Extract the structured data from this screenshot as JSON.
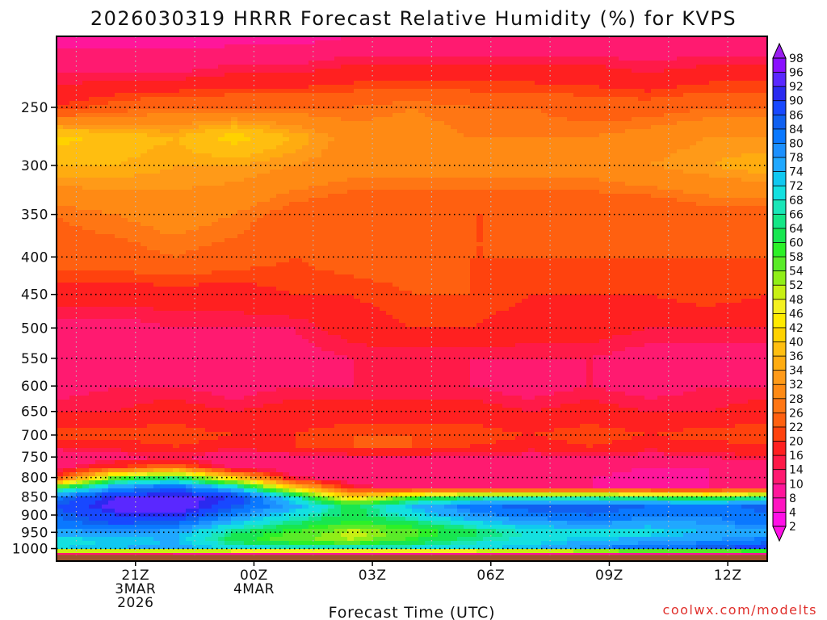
{
  "chart_data": {
    "type": "heatmap",
    "title": "2026030319 HRRR Forecast Relative Humidity (%) for KVPS",
    "xlabel": "Forecast Time (UTC)",
    "ylabel": "",
    "credit": "coolwx.com/modelts",
    "x_ticks": [
      {
        "lines": [
          "21Z",
          "3MAR",
          "2026"
        ],
        "hour": 2
      },
      {
        "lines": [
          "00Z",
          "4MAR"
        ],
        "hour": 5
      },
      {
        "lines": [
          "03Z"
        ],
        "hour": 8
      },
      {
        "lines": [
          "06Z"
        ],
        "hour": 11
      },
      {
        "lines": [
          "09Z"
        ],
        "hour": 14
      },
      {
        "lines": [
          "12Z"
        ],
        "hour": 17
      }
    ],
    "x_range_hours": [
      0,
      18
    ],
    "y_scale": "log-pressure",
    "y_range_hPa": [
      1040,
      200
    ],
    "y_ticks": [
      250,
      300,
      350,
      400,
      450,
      500,
      550,
      600,
      650,
      700,
      750,
      800,
      850,
      900,
      950,
      1000
    ],
    "surface_pressure_hPa": 1020,
    "colorbar": {
      "labels": [
        98,
        96,
        92,
        90,
        86,
        84,
        80,
        78,
        74,
        72,
        68,
        66,
        64,
        60,
        58,
        54,
        52,
        48,
        46,
        42,
        40,
        36,
        34,
        32,
        28,
        26,
        22,
        20,
        16,
        14,
        10,
        8,
        4,
        2
      ],
      "colors": [
        "#9a1ef0",
        "#8a10ff",
        "#5a28ff",
        "#2a2af0",
        "#1848ff",
        "#1060f0",
        "#0a78ff",
        "#1c90ff",
        "#20a8ff",
        "#10c8f0",
        "#14e0e0",
        "#1ae6b8",
        "#14e686",
        "#18e650",
        "#2cf028",
        "#5aeb28",
        "#90ee18",
        "#c8f014",
        "#f4f020",
        "#ffea00",
        "#ffd200",
        "#ffbe10",
        "#ffac10",
        "#ff9a18",
        "#ff8a14",
        "#ff7614",
        "#ff6010",
        "#ff420e",
        "#ff2020",
        "#ff1a48",
        "#ff1a70",
        "#ff169a",
        "#ff14c0",
        "#ff10e6"
      ]
    },
    "grid_hours": [
      0,
      1.5,
      3,
      4.5,
      6,
      7.5,
      9,
      10.5,
      12,
      13.5,
      15,
      16.5,
      18
    ],
    "grid_levels_hPa": [
      1020,
      1000,
      975,
      950,
      925,
      900,
      875,
      850,
      825,
      800,
      775,
      750,
      725,
      700,
      650,
      600,
      550,
      500,
      450,
      400,
      350,
      300,
      275,
      250,
      225,
      200
    ],
    "rh_values": [
      [
        12,
        10,
        10,
        8,
        8,
        8,
        8,
        8,
        8,
        8,
        8,
        8,
        8
      ],
      [
        72,
        74,
        76,
        72,
        70,
        70,
        70,
        72,
        74,
        80,
        84,
        86,
        90
      ],
      [
        70,
        72,
        74,
        62,
        55,
        52,
        60,
        66,
        70,
        74,
        76,
        78,
        82
      ],
      [
        76,
        78,
        76,
        64,
        58,
        50,
        56,
        62,
        68,
        70,
        70,
        74,
        76
      ],
      [
        82,
        86,
        84,
        72,
        64,
        58,
        62,
        70,
        76,
        78,
        76,
        78,
        82
      ],
      [
        84,
        90,
        92,
        80,
        70,
        62,
        70,
        78,
        82,
        84,
        82,
        80,
        84
      ],
      [
        86,
        94,
        96,
        86,
        76,
        62,
        74,
        82,
        86,
        86,
        84,
        82,
        86
      ],
      [
        82,
        92,
        94,
        90,
        70,
        40,
        56,
        62,
        64,
        62,
        60,
        58,
        62
      ],
      [
        58,
        78,
        84,
        72,
        40,
        16,
        12,
        12,
        10,
        10,
        10,
        10,
        12
      ],
      [
        20,
        56,
        64,
        40,
        14,
        10,
        10,
        12,
        10,
        10,
        8,
        10,
        10
      ],
      [
        12,
        20,
        26,
        12,
        10,
        10,
        12,
        12,
        10,
        12,
        10,
        10,
        12
      ],
      [
        10,
        12,
        14,
        10,
        12,
        14,
        14,
        14,
        12,
        14,
        12,
        14,
        16
      ],
      [
        16,
        18,
        20,
        18,
        20,
        22,
        22,
        20,
        18,
        20,
        18,
        18,
        20
      ],
      [
        22,
        22,
        22,
        20,
        20,
        22,
        22,
        22,
        20,
        22,
        20,
        22,
        22
      ],
      [
        16,
        16,
        18,
        16,
        18,
        18,
        18,
        18,
        16,
        18,
        16,
        16,
        18
      ],
      [
        12,
        14,
        14,
        12,
        14,
        14,
        14,
        14,
        12,
        14,
        12,
        14,
        14
      ],
      [
        12,
        12,
        12,
        12,
        12,
        14,
        14,
        14,
        14,
        14,
        12,
        12,
        12
      ],
      [
        12,
        12,
        14,
        14,
        14,
        18,
        20,
        20,
        18,
        18,
        16,
        16,
        16
      ],
      [
        18,
        18,
        18,
        18,
        20,
        20,
        22,
        22,
        20,
        20,
        20,
        22,
        20
      ],
      [
        24,
        24,
        26,
        24,
        22,
        24,
        24,
        22,
        22,
        22,
        22,
        22,
        22
      ],
      [
        26,
        28,
        30,
        28,
        24,
        22,
        22,
        22,
        22,
        22,
        22,
        24,
        24
      ],
      [
        36,
        36,
        34,
        34,
        32,
        30,
        30,
        30,
        30,
        30,
        32,
        34,
        36
      ],
      [
        42,
        38,
        36,
        42,
        36,
        30,
        30,
        28,
        28,
        28,
        30,
        32,
        32
      ],
      [
        20,
        24,
        26,
        26,
        26,
        26,
        28,
        26,
        26,
        24,
        24,
        26,
        26
      ],
      [
        14,
        14,
        14,
        16,
        16,
        18,
        18,
        18,
        18,
        18,
        16,
        18,
        18
      ],
      [
        8,
        8,
        8,
        8,
        8,
        10,
        10,
        10,
        10,
        10,
        10,
        10,
        10
      ]
    ]
  }
}
